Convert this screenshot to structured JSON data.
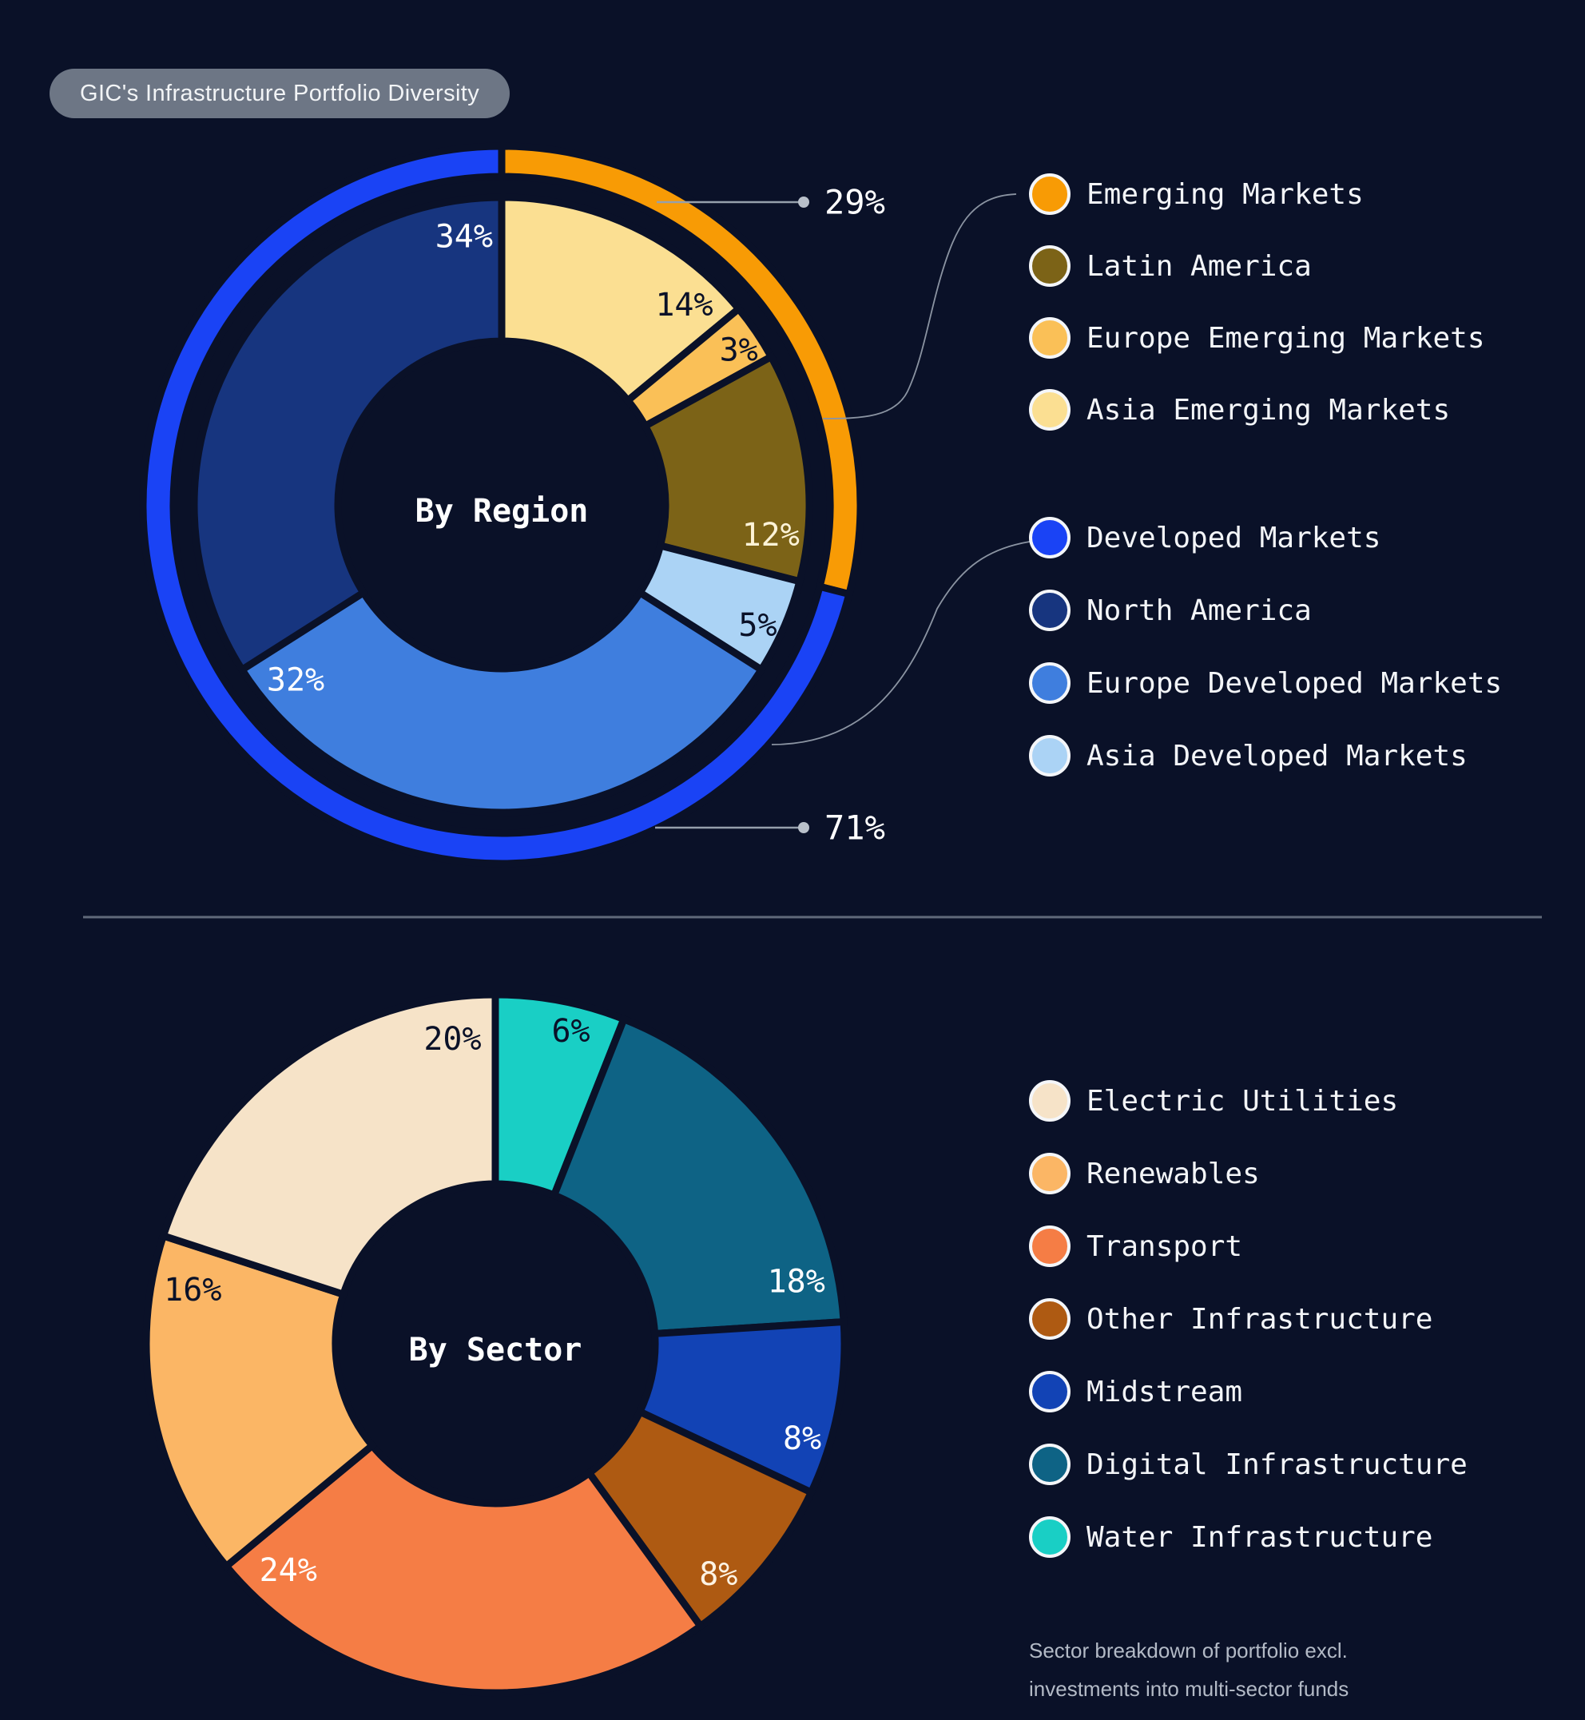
{
  "title": "GIC's Infrastructure Portfolio Diversity",
  "colors": {
    "background": "#0a1128",
    "title_pill_bg": "#6d7685",
    "title_text": "#f2f4f6",
    "legend_text": "#f3f5f8",
    "legend_circle_border": "#f4f6f9",
    "callout_line": "#96a0ac",
    "callout_dot": "#b9c0ca",
    "callout_text": "#ffffff",
    "connector_curve": "#8b94a2",
    "divider": "#60697a",
    "footnote_text": "#b3bac6",
    "center_label_text": "#ffffff"
  },
  "chart_data": [
    {
      "type": "pie",
      "variant": "double-ring-donut",
      "center_label": "By Region",
      "unit": "%",
      "outer_ring": [
        {
          "name": "Emerging Markets",
          "value": 29,
          "color": "#f89b05"
        },
        {
          "name": "Developed Markets",
          "value": 71,
          "color": "#1a43f5"
        }
      ],
      "inner_ring": [
        {
          "name": "Asia Emerging Markets",
          "value": 14,
          "color": "#fbdf92",
          "label_color": "#0a1128"
        },
        {
          "name": "Europe Emerging Markets",
          "value": 3,
          "color": "#fac057",
          "label_color": "#0a1128"
        },
        {
          "name": "Latin America",
          "value": 12,
          "color": "#7c6317",
          "label_color": "#fdf3d7"
        },
        {
          "name": "Asia Developed Markets",
          "value": 5,
          "color": "#abd3f5",
          "label_color": "#0a1128"
        },
        {
          "name": "Europe Developed Markets",
          "value": 32,
          "color": "#3f7ede",
          "label_color": "#ffffff"
        },
        {
          "name": "North America",
          "value": 34,
          "color": "#17357f",
          "label_color": "#ffffff"
        }
      ]
    },
    {
      "type": "pie",
      "variant": "donut",
      "center_label": "By Sector",
      "unit": "%",
      "slices": [
        {
          "name": "Water Infrastructure",
          "value": 6,
          "color": "#19cfc5",
          "label_color": "#0a1128"
        },
        {
          "name": "Digital Infrastructure",
          "value": 18,
          "color": "#0e6385",
          "label_color": "#ffffff"
        },
        {
          "name": "Midstream",
          "value": 8,
          "color": "#1243b5",
          "label_color": "#ffffff"
        },
        {
          "name": "Other Infrastructure",
          "value": 8,
          "color": "#ae5a12",
          "label_color": "#fdf3e3"
        },
        {
          "name": "Transport",
          "value": 24,
          "color": "#f57d45",
          "label_color": "#ffffff"
        },
        {
          "name": "Renewables",
          "value": 16,
          "color": "#fbb665",
          "label_color": "#0a1128"
        },
        {
          "name": "Electric Utilities",
          "value": 20,
          "color": "#f6e3c8",
          "label_color": "#0a1128"
        }
      ]
    }
  ],
  "legends": {
    "emerging_group": [
      {
        "label": "Emerging Markets",
        "color": "#f89b05"
      },
      {
        "label": "Latin America",
        "color": "#7c6317"
      },
      {
        "label": "Europe Emerging Markets",
        "color": "#fac057"
      },
      {
        "label": "Asia Emerging Markets",
        "color": "#fbdf92"
      }
    ],
    "developed_group": [
      {
        "label": "Developed Markets",
        "color": "#1a43f5"
      },
      {
        "label": "North America",
        "color": "#17357f"
      },
      {
        "label": "Europe Developed Markets",
        "color": "#3f7ede"
      },
      {
        "label": "Asia Developed Markets",
        "color": "#abd3f5"
      }
    ],
    "sector_group": [
      {
        "label": "Electric Utilities",
        "color": "#f6e3c8"
      },
      {
        "label": "Renewables",
        "color": "#fbb665"
      },
      {
        "label": "Transport",
        "color": "#f57d45"
      },
      {
        "label": "Other Infrastructure",
        "color": "#ae5a12"
      },
      {
        "label": "Midstream",
        "color": "#1243b5"
      },
      {
        "label": "Digital Infrastructure",
        "color": "#0e6385"
      },
      {
        "label": "Water Infrastructure",
        "color": "#19cfc5"
      }
    ]
  },
  "footnote": {
    "line1": "Sector breakdown of portfolio excl.",
    "line2": "investments into multi-sector funds"
  }
}
